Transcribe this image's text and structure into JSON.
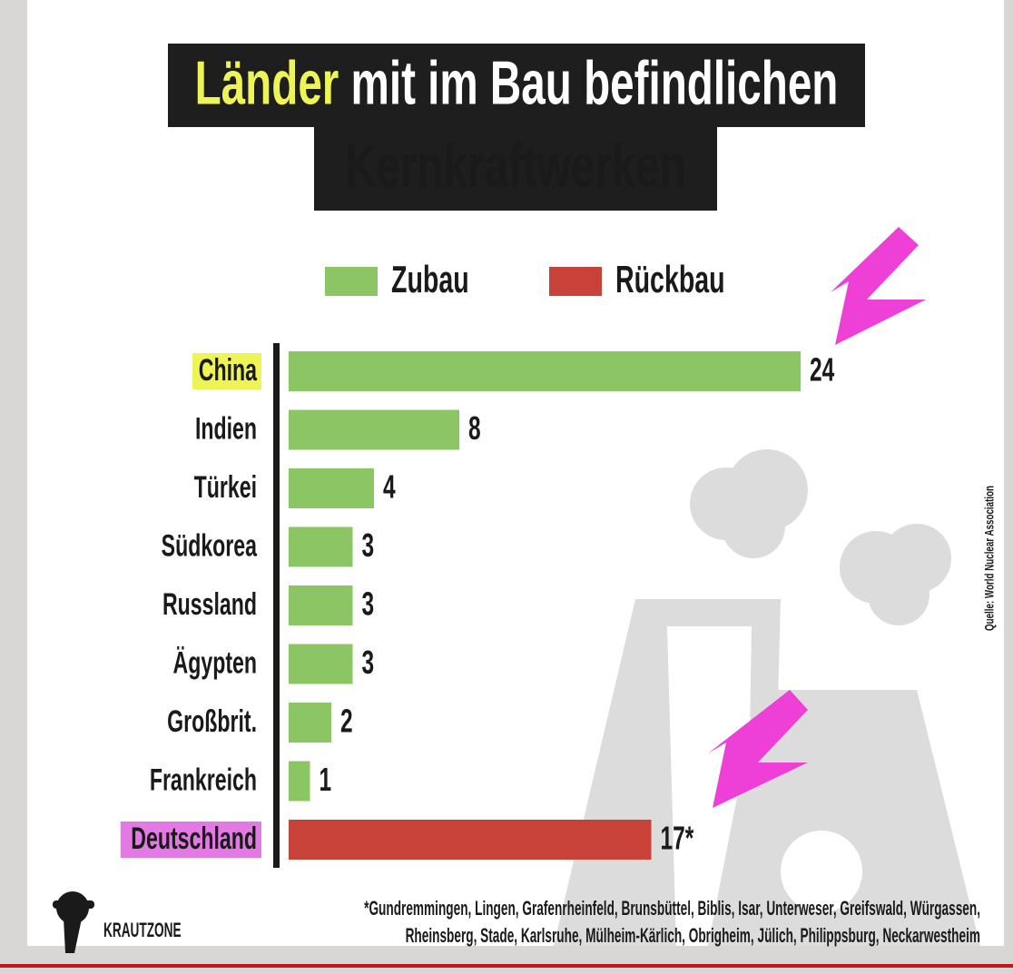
{
  "chart_data": {
    "type": "bar",
    "orientation": "horizontal",
    "title": [
      "Länder",
      "mit im Bau befindlichen",
      "Kernkraftwerken"
    ],
    "categories": [
      "China",
      "Indien",
      "Türkei",
      "Südkorea",
      "Russland",
      "Ägypten",
      "Großbrit.",
      "Frankreich",
      "Deutschland"
    ],
    "series": [
      {
        "name": "Zubau",
        "color": "#8cc563",
        "values": [
          24,
          8,
          4,
          3,
          3,
          3,
          2,
          1,
          null
        ]
      },
      {
        "name": "Rückbau",
        "color": "#c8423a",
        "values": [
          null,
          null,
          null,
          null,
          null,
          null,
          null,
          null,
          17
        ],
        "value_labels": [
          null,
          null,
          null,
          null,
          null,
          null,
          null,
          null,
          "17*"
        ]
      }
    ],
    "highlights": [
      {
        "index": 0,
        "color": "#eef356"
      },
      {
        "index": 8,
        "color": "#e37ae3"
      }
    ],
    "footnote": [
      "*Gundremmingen, Lingen, Grafenrheinfeld, Brunsbüttel, Biblis, Isar, Unterweser, Greifswald, Würgassen,",
      "Rheinsberg, Stade, Karlsruhe, Mülheim-Kärlich, Obrigheim, Jülich, Philippsburg, Neckarwestheim"
    ],
    "source": "Quelle: World Nuclear Association",
    "logo": "KRAUTZONE"
  }
}
